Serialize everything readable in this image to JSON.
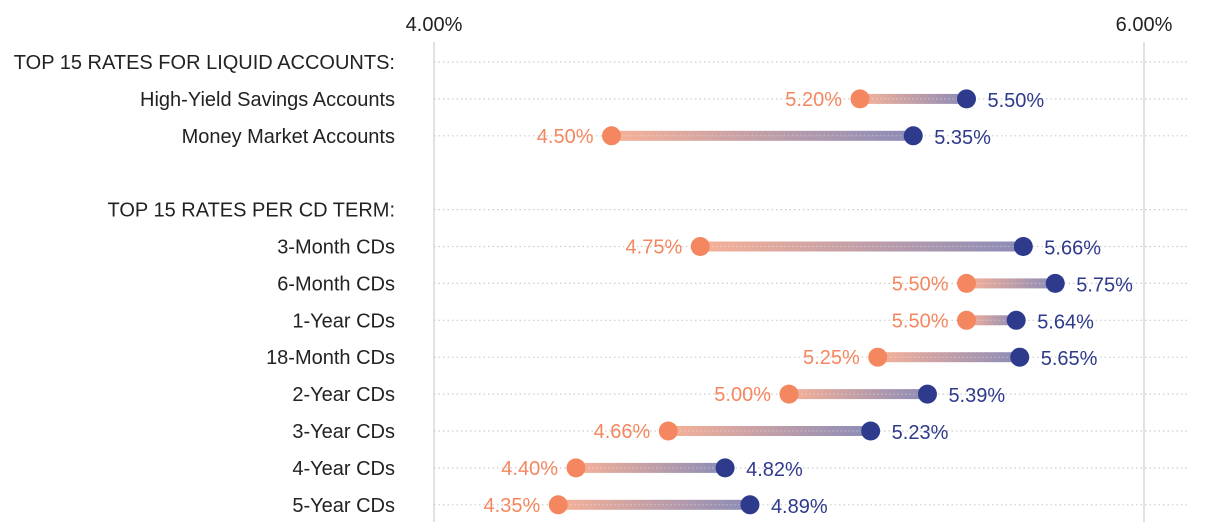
{
  "chart_data": {
    "type": "dumbbell",
    "title": "",
    "xlabel": "",
    "ylabel": "",
    "xlim": [
      4.0,
      6.0
    ],
    "x_ticks": [
      {
        "value": 4.0,
        "label": "4.00%"
      },
      {
        "value": 6.0,
        "label": "6.00%"
      }
    ],
    "grid": true,
    "series_names": [
      "low",
      "high"
    ],
    "colors": {
      "low": "#F4875F",
      "high": "#2E3A8C",
      "text": "#222222",
      "grid": "#cccccc",
      "axis": "#d9d9d9"
    },
    "rows": [
      {
        "kind": "header",
        "label": "TOP 15 RATES FOR LIQUID ACCOUNTS:"
      },
      {
        "kind": "data",
        "label": "High-Yield Savings Accounts",
        "low": 5.2,
        "high": 5.5,
        "low_label": "5.20%",
        "high_label": "5.50%"
      },
      {
        "kind": "data",
        "label": "Money Market Accounts",
        "low": 4.5,
        "high": 5.35,
        "low_label": "4.50%",
        "high_label": "5.35%"
      },
      {
        "kind": "spacer",
        "label": ""
      },
      {
        "kind": "header",
        "label": "TOP 15 RATES PER CD TERM:"
      },
      {
        "kind": "data",
        "label": "3-Month CDs",
        "low": 4.75,
        "high": 5.66,
        "low_label": "4.75%",
        "high_label": "5.66%"
      },
      {
        "kind": "data",
        "label": "6-Month CDs",
        "low": 5.5,
        "high": 5.75,
        "low_label": "5.50%",
        "high_label": "5.75%"
      },
      {
        "kind": "data",
        "label": "1-Year CDs",
        "low": 5.5,
        "high": 5.64,
        "low_label": "5.50%",
        "high_label": "5.64%"
      },
      {
        "kind": "data",
        "label": "18-Month CDs",
        "low": 5.25,
        "high": 5.65,
        "low_label": "5.25%",
        "high_label": "5.65%"
      },
      {
        "kind": "data",
        "label": "2-Year CDs",
        "low": 5.0,
        "high": 5.39,
        "low_label": "5.00%",
        "high_label": "5.39%"
      },
      {
        "kind": "data",
        "label": "3-Year CDs",
        "low": 4.66,
        "high": 5.23,
        "low_label": "4.66%",
        "high_label": "5.23%"
      },
      {
        "kind": "data",
        "label": "4-Year CDs",
        "low": 4.4,
        "high": 4.82,
        "low_label": "4.40%",
        "high_label": "4.82%"
      },
      {
        "kind": "data",
        "label": "5-Year CDs",
        "low": 4.35,
        "high": 4.89,
        "low_label": "4.35%",
        "high_label": "4.89%"
      }
    ]
  }
}
